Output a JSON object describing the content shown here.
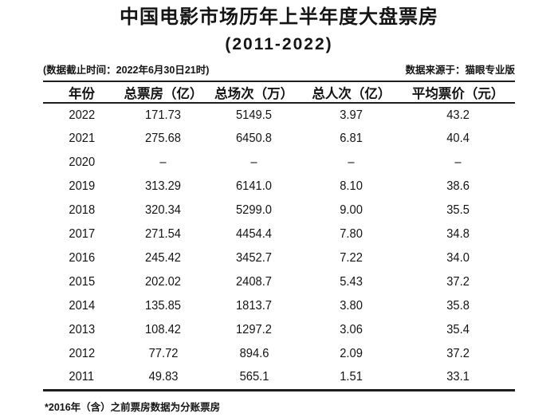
{
  "title": "中国电影市场历年上半年度大盘票房",
  "subtitle": "(2011-2022)",
  "meta": {
    "left_note": "(数据截止时间：2022年6月30日21时)",
    "right_note": "数据来源于：猫眼专业版"
  },
  "table": {
    "headers": [
      "年份",
      "总票房（亿）",
      "总场次（万）",
      "总人次（亿）",
      "平均票价（元）"
    ],
    "rows": [
      [
        "2022",
        "171.73",
        "5149.5",
        "3.97",
        "43.2"
      ],
      [
        "2021",
        "275.68",
        "6450.8",
        "6.81",
        "40.4"
      ],
      [
        "2020",
        "–",
        "–",
        "–",
        "–"
      ],
      [
        "2019",
        "313.29",
        "6141.0",
        "8.10",
        "38.6"
      ],
      [
        "2018",
        "320.34",
        "5299.0",
        "9.00",
        "35.5"
      ],
      [
        "2017",
        "271.54",
        "4454.4",
        "7.80",
        "34.8"
      ],
      [
        "2016",
        "245.42",
        "3452.7",
        "7.22",
        "34.0"
      ],
      [
        "2015",
        "202.02",
        "2408.7",
        "5.43",
        "37.2"
      ],
      [
        "2014",
        "135.85",
        "1813.7",
        "3.80",
        "35.8"
      ],
      [
        "2013",
        "108.42",
        "1297.2",
        "3.06",
        "35.4"
      ],
      [
        "2012",
        "77.72",
        "894.6",
        "2.09",
        "37.2"
      ],
      [
        "2011",
        "49.83",
        "565.1",
        "1.51",
        "33.1"
      ]
    ]
  },
  "footnote": "*2016年（含）之前票房数据为分账票房",
  "colors": {
    "text": "#141414",
    "line": "#1e1e1e",
    "background": "#ffffff"
  },
  "chart_data": {
    "type": "table",
    "title": "中国电影市场历年上半年度大盘票房 (2011-2022)",
    "columns": [
      "年份",
      "总票房（亿）",
      "总场次（万）",
      "总人次（亿）",
      "平均票价（元）"
    ],
    "categories": [
      "2022",
      "2021",
      "2020",
      "2019",
      "2018",
      "2017",
      "2016",
      "2015",
      "2014",
      "2013",
      "2012",
      "2011"
    ],
    "series": [
      {
        "name": "总票房（亿）",
        "values": [
          171.73,
          275.68,
          null,
          313.29,
          320.34,
          271.54,
          245.42,
          202.02,
          135.85,
          108.42,
          77.72,
          49.83
        ]
      },
      {
        "name": "总场次（万）",
        "values": [
          5149.5,
          6450.8,
          null,
          6141.0,
          5299.0,
          4454.4,
          3452.7,
          2408.7,
          1813.7,
          1297.2,
          894.6,
          565.1
        ]
      },
      {
        "name": "总人次（亿）",
        "values": [
          3.97,
          6.81,
          null,
          8.1,
          9.0,
          7.8,
          7.22,
          5.43,
          3.8,
          3.06,
          2.09,
          1.51
        ]
      },
      {
        "name": "平均票价（元）",
        "values": [
          43.2,
          40.4,
          null,
          38.6,
          35.5,
          34.8,
          34.0,
          37.2,
          35.8,
          35.4,
          37.2,
          33.1
        ]
      }
    ],
    "missing_value_marker": "–",
    "notes": [
      "(数据截止时间：2022年6月30日21时)",
      "数据来源于：猫眼专业版",
      "*2016年（含）之前票房数据为分账票房"
    ]
  }
}
